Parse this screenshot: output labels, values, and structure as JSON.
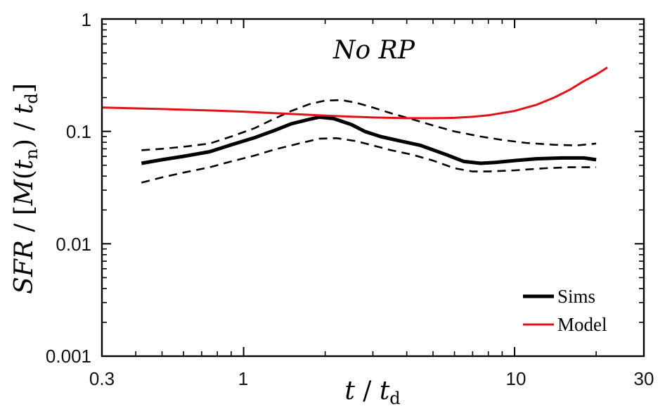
{
  "chart_data": {
    "type": "line",
    "title": "No RP",
    "xlabel": "t / td",
    "ylabel": "SFR / [M(tn) / td]",
    "xscale": "log",
    "yscale": "log",
    "xlim": [
      0.3,
      30
    ],
    "ylim": [
      0.001,
      1
    ],
    "xticks": [
      0.3,
      1,
      10,
      30
    ],
    "xtick_labels": [
      "0.3",
      "1",
      "10",
      "30"
    ],
    "yticks": [
      0.001,
      0.01,
      0.1,
      1
    ],
    "ytick_labels": [
      "0.001",
      "0.01",
      "0.1",
      "1"
    ],
    "legend_position": "bottom-right",
    "series": [
      {
        "name": "Sims",
        "color": "#000000",
        "style": "solid-thick",
        "in_legend": true,
        "x": [
          0.42,
          0.5,
          0.6,
          0.75,
          0.9,
          1.1,
          1.3,
          1.5,
          1.75,
          1.9,
          2.15,
          2.5,
          2.8,
          3.2,
          3.8,
          4.5,
          5.5,
          6.5,
          7.5,
          8.5,
          10,
          12,
          15,
          18,
          20
        ],
        "values": [
          0.052,
          0.056,
          0.06,
          0.066,
          0.076,
          0.088,
          0.102,
          0.117,
          0.128,
          0.134,
          0.13,
          0.115,
          0.1,
          0.09,
          0.082,
          0.075,
          0.063,
          0.054,
          0.052,
          0.053,
          0.055,
          0.057,
          0.058,
          0.058,
          0.056
        ]
      },
      {
        "name": "Sims upper",
        "color": "#000000",
        "style": "dashed",
        "in_legend": false,
        "x": [
          0.42,
          0.5,
          0.6,
          0.75,
          0.9,
          1.1,
          1.3,
          1.5,
          1.75,
          2.0,
          2.3,
          2.6,
          3.0,
          3.5,
          4.2,
          5.0,
          6.0,
          7.5,
          9.0,
          11,
          14,
          17,
          20
        ],
        "values": [
          0.068,
          0.07,
          0.073,
          0.078,
          0.09,
          0.107,
          0.13,
          0.152,
          0.175,
          0.188,
          0.19,
          0.18,
          0.163,
          0.145,
          0.128,
          0.113,
          0.1,
          0.09,
          0.084,
          0.079,
          0.076,
          0.075,
          0.078
        ]
      },
      {
        "name": "Sims lower",
        "color": "#000000",
        "style": "dashed",
        "in_legend": false,
        "x": [
          0.42,
          0.5,
          0.6,
          0.75,
          0.9,
          1.1,
          1.3,
          1.6,
          1.9,
          2.2,
          2.6,
          3.0,
          3.5,
          4.2,
          5.0,
          6.0,
          7.0,
          8.0,
          10,
          13,
          16,
          20
        ],
        "values": [
          0.035,
          0.039,
          0.043,
          0.048,
          0.054,
          0.061,
          0.069,
          0.078,
          0.086,
          0.087,
          0.082,
          0.075,
          0.068,
          0.062,
          0.055,
          0.047,
          0.044,
          0.044,
          0.045,
          0.047,
          0.048,
          0.048
        ]
      },
      {
        "name": "Model",
        "color": "#e0121a",
        "style": "solid",
        "in_legend": true,
        "x": [
          0.3,
          0.5,
          0.8,
          1.0,
          1.5,
          2.0,
          3.0,
          4.0,
          5.0,
          6.0,
          7.0,
          8.0,
          10,
          12,
          14,
          16,
          18,
          20,
          22
        ],
        "values": [
          0.163,
          0.158,
          0.153,
          0.15,
          0.143,
          0.138,
          0.133,
          0.131,
          0.131,
          0.132,
          0.135,
          0.139,
          0.152,
          0.172,
          0.2,
          0.235,
          0.28,
          0.32,
          0.37
        ]
      }
    ]
  }
}
